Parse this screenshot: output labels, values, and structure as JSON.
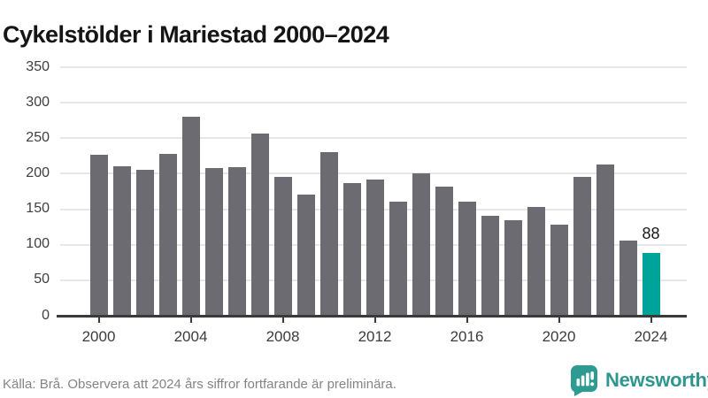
{
  "title": "Cykelstölder i Mariestad 2000–2024",
  "footer": {
    "source_note": "Källa: Brå. Observera att 2024 års siffror fortfarande är preliminära."
  },
  "branding": {
    "logo_text": "Newsworthy",
    "logo_color": "#2e968e"
  },
  "colors": {
    "bar_default": "#6c6b71",
    "bar_highlight": "#00a39a",
    "gridline": "#e7e7e7",
    "axis": "#3a3a3a"
  },
  "chart_data": {
    "type": "bar",
    "title": "Cykelstölder i Mariestad 2000–2024",
    "xlabel": "",
    "ylabel": "",
    "categories": [
      2000,
      2001,
      2002,
      2003,
      2004,
      2005,
      2006,
      2007,
      2008,
      2009,
      2010,
      2011,
      2012,
      2013,
      2014,
      2015,
      2016,
      2017,
      2018,
      2019,
      2020,
      2021,
      2022,
      2023,
      2024
    ],
    "values": [
      227,
      211,
      206,
      228,
      280,
      208,
      209,
      257,
      196,
      171,
      230,
      187,
      192,
      161,
      201,
      182,
      161,
      141,
      135,
      153,
      128,
      196,
      213,
      106,
      88
    ],
    "y_ticks": [
      0,
      50,
      100,
      150,
      200,
      250,
      300,
      350
    ],
    "ylim": [
      0,
      350
    ],
    "x_tick_labels": [
      "2000",
      "2004",
      "2008",
      "2012",
      "2016",
      "2020",
      "2024"
    ],
    "grid": true,
    "legend": false,
    "highlight": {
      "category": 2024,
      "value": 88,
      "label": "88"
    }
  }
}
